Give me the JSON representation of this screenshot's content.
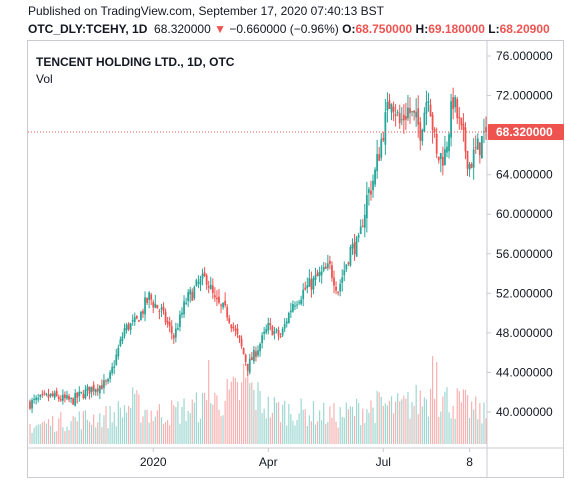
{
  "header": {
    "published": "Published on TradingView.com, September 17, 2020 07:40:13 BST",
    "symbol": "OTC_DLY:TCEHY, 1D",
    "last": "68.320000",
    "change_arrow": "▼",
    "change": "−0.660000 (−0.96%)",
    "open_label": "O:",
    "open": "68.750000",
    "high_label": "H:",
    "high": "69.180000",
    "low_label": "L:",
    "low": "68.20900"
  },
  "legend": {
    "title": "TENCENT HOLDING LTD., 1D, OTC",
    "volume_label": "Vol"
  },
  "colors": {
    "up": "#26a69a",
    "down": "#ef5350",
    "last_price": "#ef5350"
  },
  "chart_data": {
    "type": "candlestick",
    "title": "TENCENT HOLDING LTD., 1D, OTC",
    "y_ticks": [
      "76.000000",
      "72.000000",
      "68.000000",
      "64.000000",
      "60.000000",
      "56.000000",
      "52.000000",
      "48.000000",
      "44.000000",
      "40.000000"
    ],
    "y_tick_values": [
      76,
      72,
      68,
      64,
      60,
      56,
      52,
      48,
      44,
      40
    ],
    "x_ticks": [
      "2020",
      "Apr",
      "Jul",
      "8"
    ],
    "x_tick_indices": [
      60,
      116,
      172,
      214
    ],
    "ylim": [
      36.2,
      78.0
    ],
    "last_price": 68.32,
    "last_price_label": "68.320000",
    "price_anchors": [
      [
        0,
        40.9
      ],
      [
        10,
        41.6
      ],
      [
        20,
        41.1
      ],
      [
        30,
        42.4
      ],
      [
        38,
        42.9
      ],
      [
        46,
        48.4
      ],
      [
        52,
        49.2
      ],
      [
        58,
        51.6
      ],
      [
        64,
        50.1
      ],
      [
        70,
        47.6
      ],
      [
        76,
        51.2
      ],
      [
        82,
        52.9
      ],
      [
        86,
        53.6
      ],
      [
        90,
        51.1
      ],
      [
        96,
        49.9
      ],
      [
        102,
        47.1
      ],
      [
        106,
        44.6
      ],
      [
        110,
        46.1
      ],
      [
        116,
        48.6
      ],
      [
        122,
        47.6
      ],
      [
        128,
        51.1
      ],
      [
        134,
        52.4
      ],
      [
        140,
        53.6
      ],
      [
        146,
        54.6
      ],
      [
        150,
        52.4
      ],
      [
        156,
        56.4
      ],
      [
        160,
        57.1
      ],
      [
        164,
        61.6
      ],
      [
        168,
        64.1
      ],
      [
        172,
        68.6
      ],
      [
        176,
        72.1
      ],
      [
        180,
        69.1
      ],
      [
        184,
        70.6
      ],
      [
        190,
        68.6
      ],
      [
        194,
        72.6
      ],
      [
        198,
        65.6
      ],
      [
        202,
        66.1
      ],
      [
        206,
        71.6
      ],
      [
        210,
        68.1
      ],
      [
        214,
        65.1
      ],
      [
        218,
        66.6
      ],
      [
        222,
        68.32
      ]
    ],
    "volume_anchors": [
      [
        0,
        0.45
      ],
      [
        20,
        0.6
      ],
      [
        40,
        0.7
      ],
      [
        50,
        1.0
      ],
      [
        60,
        0.75
      ],
      [
        70,
        0.8
      ],
      [
        80,
        0.9
      ],
      [
        90,
        1.05
      ],
      [
        100,
        1.25
      ],
      [
        106,
        1.4
      ],
      [
        116,
        0.9
      ],
      [
        130,
        0.8
      ],
      [
        140,
        0.75
      ],
      [
        150,
        0.7
      ],
      [
        160,
        0.85
      ],
      [
        170,
        0.95
      ],
      [
        180,
        0.9
      ],
      [
        195,
        1.2
      ],
      [
        210,
        1.0
      ],
      [
        222,
        0.7
      ]
    ],
    "volume_spikes": [
      [
        87,
        2.1
      ],
      [
        104,
        2.0
      ],
      [
        106,
        1.9
      ],
      [
        196,
        2.2
      ],
      [
        198,
        2.05
      ]
    ],
    "bars": 223
  }
}
